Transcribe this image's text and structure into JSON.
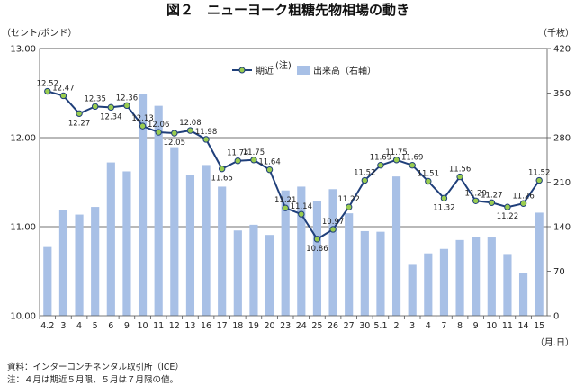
{
  "chart_data": {
    "type": "bar+line",
    "title": "図２　ニューヨーク粗糖先物相場の動き",
    "y_left_label": "（セント/ポンド）",
    "y_right_label": "（千枚）",
    "x_unit_label": "（月.日）",
    "y_left_ticks": [
      "13.00",
      "12.00",
      "11.00",
      "10.00"
    ],
    "y_left_lim": [
      10,
      13
    ],
    "y_right_ticks": [
      "420",
      "350",
      "280",
      "210",
      "140",
      "70",
      "0"
    ],
    "y_right_lim": [
      0,
      420
    ],
    "grid": "horizontal at left-axis major ticks",
    "legend_position": "top-center",
    "categories": [
      "4.2",
      "3",
      "4",
      "5",
      "6",
      "9",
      "10",
      "11",
      "12",
      "13",
      "16",
      "17",
      "18",
      "19",
      "20",
      "23",
      "24",
      "25",
      "26",
      "27",
      "30",
      "5.1",
      "2",
      "3",
      "4",
      "7",
      "8",
      "9",
      "10",
      "11",
      "14",
      "15"
    ],
    "series": [
      {
        "name": "期近",
        "name_note": "(注)",
        "axis": "left",
        "kind": "line",
        "color": "#1f3f7a",
        "marker_color": "#9acd50",
        "values": [
          12.52,
          12.47,
          12.27,
          12.35,
          12.34,
          12.36,
          12.13,
          12.06,
          12.05,
          12.08,
          11.98,
          11.65,
          11.74,
          11.75,
          11.64,
          11.21,
          11.14,
          10.86,
          10.97,
          11.22,
          11.52,
          11.69,
          11.75,
          11.69,
          11.51,
          11.32,
          11.56,
          11.29,
          11.27,
          11.22,
          11.26,
          11.52
        ]
      },
      {
        "name": "出来高（右軸）",
        "axis": "right",
        "kind": "bar",
        "color": "#a8c0e6",
        "values": [
          108,
          166,
          159,
          171,
          241,
          227,
          349,
          330,
          265,
          222,
          237,
          203,
          134,
          143,
          127,
          197,
          203,
          180,
          199,
          161,
          133,
          132,
          219,
          80,
          98,
          105,
          119,
          124,
          123,
          97,
          67,
          162
        ]
      }
    ],
    "data_labels": [
      "12.52",
      "12.47",
      "12.27",
      "12.35",
      "12.34",
      "12.36",
      "12.13",
      "12.06",
      "12.05",
      "12.08",
      "11.98",
      "11.65",
      "11.74",
      "11.75",
      "11.64",
      "11.21",
      "11.14",
      "10.86",
      "10.97",
      "11.22",
      "11.52",
      "11.69",
      "11.75",
      "11.69",
      "11.51",
      "11.32",
      "11.56",
      "11.29",
      "11.27",
      "11.22",
      "11.26",
      "11.52"
    ]
  },
  "notes": {
    "source": "資料：インターコンチネンタル取引所（ICE）",
    "footnote": "注：４月は期近５月限、５月は７月限の値。"
  }
}
